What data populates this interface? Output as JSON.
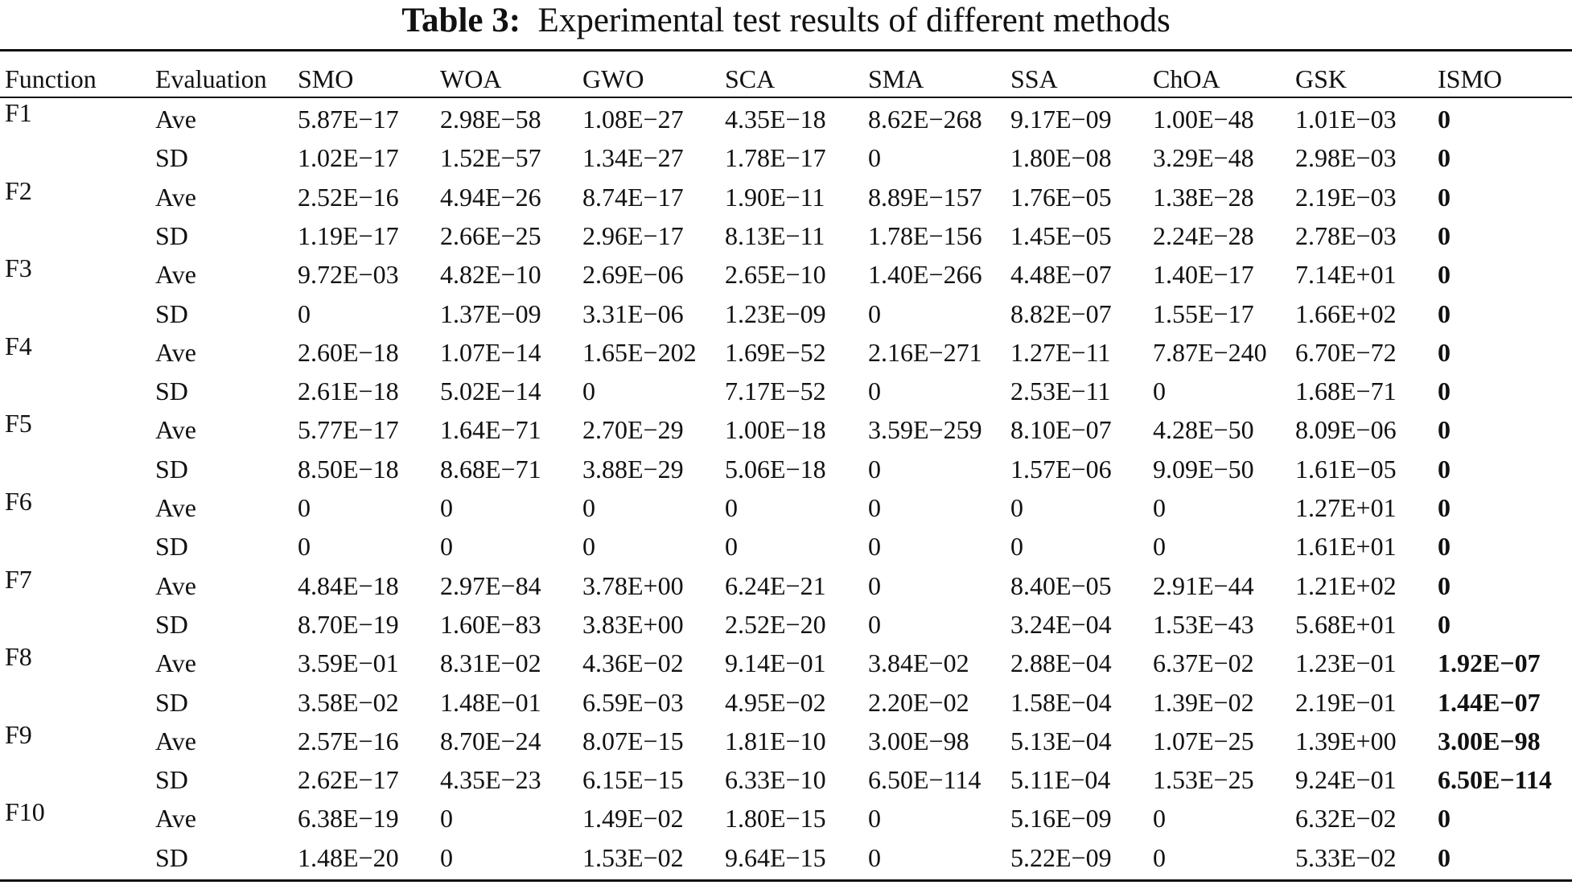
{
  "caption": {
    "label": "Table 3:",
    "text": "Experimental test results of different methods"
  },
  "table": {
    "headers": [
      "Function",
      "Evaluation",
      "SMO",
      "WOA",
      "GWO",
      "SCA",
      "SMA",
      "SSA",
      "ChOA",
      "GSK",
      "ISMO"
    ],
    "rows": [
      {
        "function": "F1",
        "eval": "Ave",
        "values": [
          "5.87E−17",
          "2.98E−58",
          "1.08E−27",
          "4.35E−18",
          "8.62E−268",
          "9.17E−09",
          "1.00E−48",
          "1.01E−03",
          "0"
        ]
      },
      {
        "function": "",
        "eval": "SD",
        "values": [
          "1.02E−17",
          "1.52E−57",
          "1.34E−27",
          "1.78E−17",
          "0",
          "1.80E−08",
          "3.29E−48",
          "2.98E−03",
          "0"
        ]
      },
      {
        "function": "F2",
        "eval": "Ave",
        "values": [
          "2.52E−16",
          "4.94E−26",
          "8.74E−17",
          "1.90E−11",
          "8.89E−157",
          "1.76E−05",
          "1.38E−28",
          "2.19E−03",
          "0"
        ]
      },
      {
        "function": "",
        "eval": "SD",
        "values": [
          "1.19E−17",
          "2.66E−25",
          "2.96E−17",
          "8.13E−11",
          "1.78E−156",
          "1.45E−05",
          "2.24E−28",
          "2.78E−03",
          "0"
        ]
      },
      {
        "function": "F3",
        "eval": "Ave",
        "values": [
          "9.72E−03",
          "4.82E−10",
          "2.69E−06",
          "2.65E−10",
          "1.40E−266",
          "4.48E−07",
          "1.40E−17",
          "7.14E+01",
          "0"
        ]
      },
      {
        "function": "",
        "eval": "SD",
        "values": [
          "0",
          "1.37E−09",
          "3.31E−06",
          "1.23E−09",
          "0",
          "8.82E−07",
          "1.55E−17",
          "1.66E+02",
          "0"
        ]
      },
      {
        "function": "F4",
        "eval": "Ave",
        "values": [
          "2.60E−18",
          "1.07E−14",
          "1.65E−202",
          "1.69E−52",
          "2.16E−271",
          "1.27E−11",
          "7.87E−240",
          "6.70E−72",
          "0"
        ]
      },
      {
        "function": "",
        "eval": "SD",
        "values": [
          "2.61E−18",
          "5.02E−14",
          "0",
          "7.17E−52",
          "0",
          "2.53E−11",
          "0",
          "1.68E−71",
          "0"
        ]
      },
      {
        "function": "F5",
        "eval": "Ave",
        "values": [
          "5.77E−17",
          "1.64E−71",
          "2.70E−29",
          "1.00E−18",
          "3.59E−259",
          "8.10E−07",
          "4.28E−50",
          "8.09E−06",
          "0"
        ]
      },
      {
        "function": "",
        "eval": "SD",
        "values": [
          "8.50E−18",
          "8.68E−71",
          "3.88E−29",
          "5.06E−18",
          "0",
          "1.57E−06",
          "9.09E−50",
          "1.61E−05",
          "0"
        ]
      },
      {
        "function": "F6",
        "eval": "Ave",
        "values": [
          "0",
          "0",
          "0",
          "0",
          "0",
          "0",
          "0",
          "1.27E+01",
          "0"
        ]
      },
      {
        "function": "",
        "eval": "SD",
        "values": [
          "0",
          "0",
          "0",
          "0",
          "0",
          "0",
          "0",
          "1.61E+01",
          "0"
        ]
      },
      {
        "function": "F7",
        "eval": "Ave",
        "values": [
          "4.84E−18",
          "2.97E−84",
          "3.78E+00",
          "6.24E−21",
          "0",
          "8.40E−05",
          "2.91E−44",
          "1.21E+02",
          "0"
        ]
      },
      {
        "function": "",
        "eval": "SD",
        "values": [
          "8.70E−19",
          "1.60E−83",
          "3.83E+00",
          "2.52E−20",
          "0",
          "3.24E−04",
          "1.53E−43",
          "5.68E+01",
          "0"
        ]
      },
      {
        "function": "F8",
        "eval": "Ave",
        "values": [
          "3.59E−01",
          "8.31E−02",
          "4.36E−02",
          "9.14E−01",
          "3.84E−02",
          "2.88E−04",
          "6.37E−02",
          "1.23E−01",
          "1.92E−07"
        ]
      },
      {
        "function": "",
        "eval": "SD",
        "values": [
          "3.58E−02",
          "1.48E−01",
          "6.59E−03",
          "4.95E−02",
          "2.20E−02",
          "1.58E−04",
          "1.39E−02",
          "2.19E−01",
          "1.44E−07"
        ]
      },
      {
        "function": "F9",
        "eval": "Ave",
        "values": [
          "2.57E−16",
          "8.70E−24",
          "8.07E−15",
          "1.81E−10",
          "3.00E−98",
          "5.13E−04",
          "1.07E−25",
          "1.39E+00",
          "3.00E−98"
        ]
      },
      {
        "function": "",
        "eval": "SD",
        "values": [
          "2.62E−17",
          "4.35E−23",
          "6.15E−15",
          "6.33E−10",
          "6.50E−114",
          "5.11E−04",
          "1.53E−25",
          "9.24E−01",
          "6.50E−114"
        ]
      },
      {
        "function": "F10",
        "eval": "Ave",
        "values": [
          "6.38E−19",
          "0",
          "1.49E−02",
          "1.80E−15",
          "0",
          "5.16E−09",
          "0",
          "6.32E−02",
          "0"
        ]
      },
      {
        "function": "",
        "eval": "SD",
        "values": [
          "1.48E−20",
          "0",
          "1.53E−02",
          "9.64E−15",
          "0",
          "5.22E−09",
          "0",
          "5.33E−02",
          "0"
        ]
      }
    ]
  }
}
